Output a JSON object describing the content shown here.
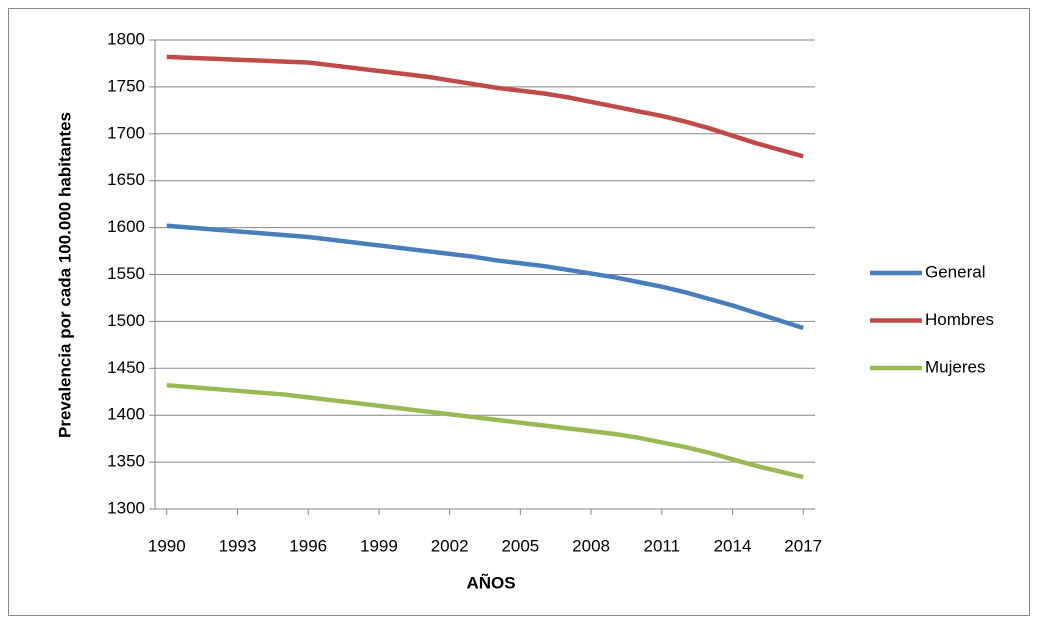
{
  "chart_data": {
    "type": "line",
    "x_label": "AÑOS",
    "y_label": "Prevalencia por cada 100.000 habitantes",
    "x": [
      1990,
      1991,
      1992,
      1993,
      1994,
      1995,
      1996,
      1997,
      1998,
      1999,
      2000,
      2001,
      2002,
      2003,
      2004,
      2005,
      2006,
      2007,
      2008,
      2009,
      2010,
      2011,
      2012,
      2013,
      2014,
      2015,
      2016,
      2017
    ],
    "xlim": [
      1989.5,
      2017.5
    ],
    "xticks": [
      1990,
      1993,
      1996,
      1999,
      2002,
      2005,
      2008,
      2011,
      2014,
      2017
    ],
    "ylim": [
      1300,
      1800
    ],
    "yticks": [
      1300,
      1350,
      1400,
      1450,
      1500,
      1550,
      1600,
      1650,
      1700,
      1750,
      1800
    ],
    "grid": true,
    "legend": "right",
    "series": [
      {
        "name": "General",
        "color": "#4a7ebb",
        "values": [
          1602,
          1600,
          1598,
          1596,
          1594,
          1592,
          1590,
          1587,
          1584,
          1581,
          1578,
          1575,
          1572,
          1569,
          1565,
          1562,
          1559,
          1555,
          1551,
          1547,
          1542,
          1537,
          1531,
          1524,
          1517,
          1509,
          1501,
          1493
        ]
      },
      {
        "name": "Hombres",
        "color": "#be4b48",
        "values": [
          1782,
          1781,
          1780,
          1779,
          1778,
          1777,
          1776,
          1773,
          1770,
          1767,
          1764,
          1761,
          1757,
          1753,
          1749,
          1746,
          1743,
          1739,
          1734,
          1729,
          1724,
          1719,
          1713,
          1706,
          1698,
          1690,
          1683,
          1676
        ]
      },
      {
        "name": "Mujeres",
        "color": "#98b954",
        "values": [
          1432,
          1430,
          1428,
          1426,
          1424,
          1422,
          1419,
          1416,
          1413,
          1410,
          1407,
          1404,
          1401,
          1398,
          1395,
          1392,
          1389,
          1386,
          1383,
          1380,
          1376,
          1371,
          1366,
          1360,
          1353,
          1346,
          1340,
          1334
        ]
      }
    ]
  }
}
